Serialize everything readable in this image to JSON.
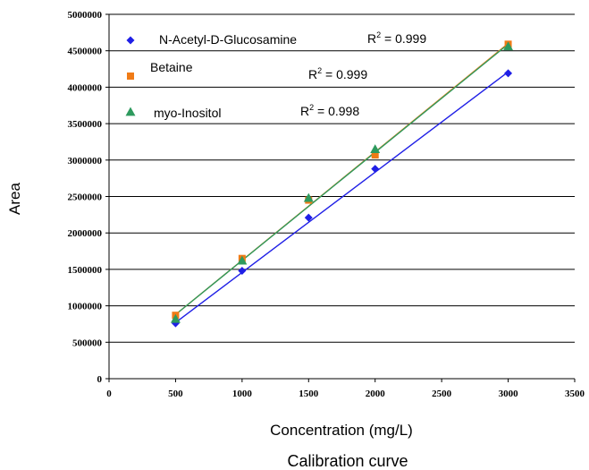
{
  "chart_data": {
    "type": "scatter",
    "xlabel": "Concentration (mg/L)",
    "ylabel": "Area",
    "caption": "Calibration curve",
    "xlim": [
      0,
      3500
    ],
    "ylim": [
      0,
      5000000
    ],
    "xticks": [
      "0",
      "500",
      "1000",
      "1500",
      "2000",
      "2500",
      "3000",
      "3500"
    ],
    "yticks": [
      "0",
      "500000",
      "1000000",
      "1500000",
      "2000000",
      "2500000",
      "3000000",
      "3500000",
      "4000000",
      "4500000",
      "5000000"
    ],
    "grid": "horizontal",
    "legend_position": "top-left",
    "series": [
      {
        "name": "N-Acetyl-D-Glucosamine",
        "marker": "diamond",
        "color": "#1f1fe6",
        "x": [
          500,
          1000,
          1500,
          2000,
          3000
        ],
        "y": [
          760000,
          1480000,
          2210000,
          2880000,
          4190000
        ],
        "trendline": [
          [
            500,
            770000
          ],
          [
            3000,
            4210000
          ]
        ],
        "r2_text": "R2 = 0.999"
      },
      {
        "name": "Betaine",
        "marker": "square",
        "color": "#f07b16",
        "x": [
          500,
          1000,
          1500,
          2000,
          3000
        ],
        "y": [
          870000,
          1650000,
          2450000,
          3070000,
          4590000
        ],
        "trendline": [
          [
            500,
            880000
          ],
          [
            3000,
            4600000
          ]
        ],
        "r2_text": "R2 = 0.999"
      },
      {
        "name": "myo-Inositol",
        "marker": "triangle",
        "color": "#2e9a5e",
        "x": [
          500,
          1000,
          1500,
          2000,
          3000
        ],
        "y": [
          820000,
          1620000,
          2480000,
          3150000,
          4560000
        ],
        "trendline": [
          [
            500,
            880000
          ],
          [
            3000,
            4590000
          ]
        ],
        "r2_text": "R2 = 0.998"
      }
    ]
  }
}
